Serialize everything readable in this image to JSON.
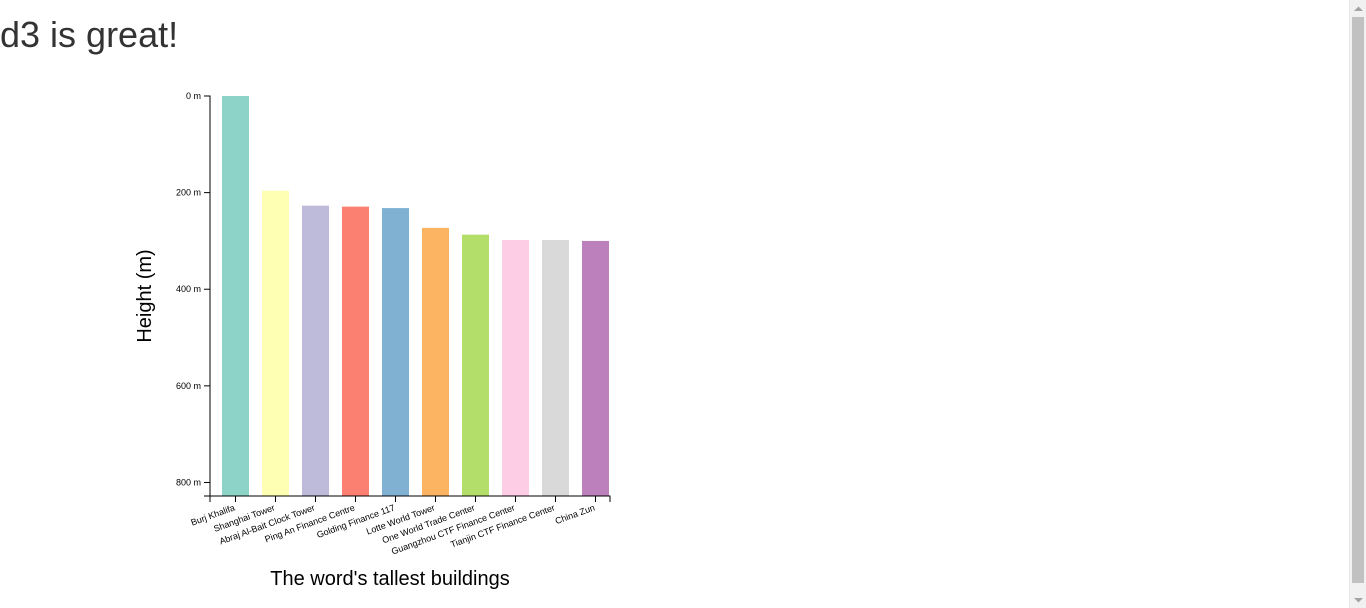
{
  "page": {
    "heading": "d3 is great!"
  },
  "chart_data": {
    "type": "bar",
    "categories": [
      "Burj Khalifa",
      "Shanghai Tower",
      "Abraj Al-Bait Clock Tower",
      "Ping An Finance Centre",
      "Golding Finance 117",
      "Lotte World Tower",
      "One World Trade Center",
      "Guangzhou CTF Finance Center",
      "Tianjin CTF Finance Center",
      "China Zun"
    ],
    "values": [
      828,
      632,
      601,
      599,
      596,
      555,
      541,
      530,
      530,
      528
    ],
    "colors": [
      "#8dd3c7",
      "#ffffb3",
      "#bebada",
      "#fb8072",
      "#80b1d3",
      "#fdb462",
      "#b3de69",
      "#fccde5",
      "#d9d9d9",
      "#bc80bd"
    ],
    "xlabel": "The word's tallest buildings",
    "ylabel": "Height (m)",
    "ylim": [
      828,
      0
    ],
    "yticks": [
      {
        "value": 0,
        "label": "0 m"
      },
      {
        "value": 200,
        "label": "200 m"
      },
      {
        "value": 400,
        "label": "400 m"
      },
      {
        "value": 600,
        "label": "600 m"
      },
      {
        "value": 800,
        "label": "800 m"
      }
    ],
    "y_axis_inverted": true,
    "grid": false,
    "legend": "none"
  }
}
